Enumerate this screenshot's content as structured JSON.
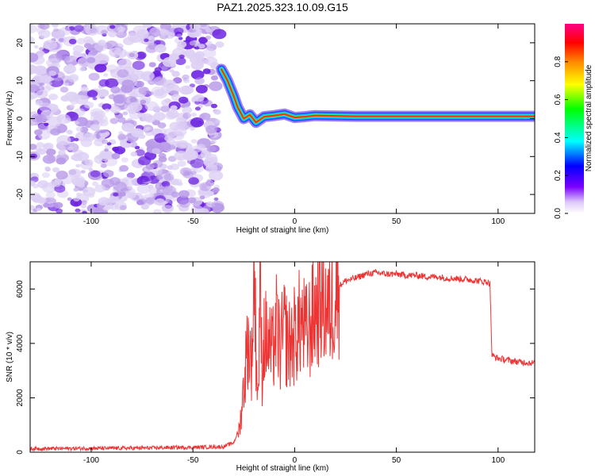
{
  "title": "PAZ1.2025.323.10.09.G15",
  "colors": {
    "snr_line": "#ee3333",
    "axis": "#000000",
    "noise_light": "#ddd0f4",
    "noise_mid": "#b89ae8",
    "noise_dark": "#6a1fe0",
    "signal_core": "#ff3300",
    "signal_halo": "#00ccff"
  },
  "chart_data": [
    {
      "type": "heatmap",
      "title": "PAZ1.2025.323.10.09.G15",
      "xlabel": "Height of straight line (km)",
      "ylabel": "Frequency (Hz)",
      "xlim": [
        -130,
        118
      ],
      "ylim": [
        -25,
        25
      ],
      "xticks": [
        -100,
        -50,
        0,
        50,
        100
      ],
      "yticks": [
        -20,
        -10,
        0,
        10,
        20
      ],
      "xtick_labels": [
        "-100",
        "-50",
        "0",
        "50",
        "100"
      ],
      "ytick_labels": [
        "-20",
        "-10",
        "0",
        "10",
        "20"
      ],
      "noise_region_x": [
        -130,
        -36
      ],
      "signal_track": [
        {
          "x": -36,
          "y": 13
        },
        {
          "x": -33,
          "y": 10
        },
        {
          "x": -30,
          "y": 6
        },
        {
          "x": -28,
          "y": 3
        },
        {
          "x": -25,
          "y": 0
        },
        {
          "x": -22,
          "y": 1
        },
        {
          "x": -19,
          "y": -1
        },
        {
          "x": -15,
          "y": 0.5
        },
        {
          "x": -10,
          "y": 0.8
        },
        {
          "x": -5,
          "y": 1.2
        },
        {
          "x": 0,
          "y": 0.3
        },
        {
          "x": 5,
          "y": 0.5
        },
        {
          "x": 10,
          "y": 0.8
        },
        {
          "x": 30,
          "y": 0.6
        },
        {
          "x": 60,
          "y": 0.6
        },
        {
          "x": 90,
          "y": 0.6
        },
        {
          "x": 118,
          "y": 0.6
        }
      ],
      "colorbar": {
        "label": "Normalized spectral amplitude",
        "range": [
          0,
          1
        ],
        "ticks": [
          0.0,
          0.2,
          0.4,
          0.6,
          0.8
        ],
        "tick_labels": [
          "0.0",
          "0.2",
          "0.4",
          "0.6",
          "0.8"
        ]
      }
    },
    {
      "type": "line",
      "xlabel": "Height of straight line (km)",
      "ylabel": "SNR (10 * v/v)",
      "xlim": [
        -130,
        118
      ],
      "ylim": [
        0,
        7000
      ],
      "xticks": [
        -100,
        -50,
        0,
        50,
        100
      ],
      "yticks": [
        0,
        2000,
        4000,
        6000
      ],
      "xtick_labels": [
        "-100",
        "-50",
        "0",
        "50",
        "100"
      ],
      "ytick_labels": [
        "0",
        "2000",
        "4000",
        "6000"
      ],
      "series": [
        {
          "name": "SNR",
          "x": [
            -130,
            -80,
            -50,
            -35,
            -30,
            -27,
            -25,
            -23,
            -21,
            -20,
            -19,
            -18,
            -17,
            -16,
            -15,
            -13,
            -11,
            -9,
            -7,
            -5,
            -3,
            0,
            3,
            6,
            10,
            13,
            17,
            20,
            25,
            30,
            35,
            40,
            45,
            50,
            55,
            60,
            65,
            70,
            75,
            80,
            85,
            90,
            95,
            96,
            97,
            100,
            105,
            110,
            118
          ],
          "y": [
            130,
            150,
            180,
            200,
            350,
            900,
            2400,
            4100,
            3300,
            7000,
            4000,
            1900,
            6400,
            3000,
            4300,
            4000,
            3600,
            4600,
            3800,
            4500,
            3900,
            4300,
            4800,
            4300,
            5200,
            5700,
            5100,
            6000,
            6300,
            6400,
            6550,
            6600,
            6550,
            6550,
            6500,
            6500,
            6450,
            6450,
            6400,
            6380,
            6350,
            6300,
            6250,
            6200,
            3550,
            3450,
            3380,
            3320,
            3280
          ]
        }
      ]
    }
  ]
}
